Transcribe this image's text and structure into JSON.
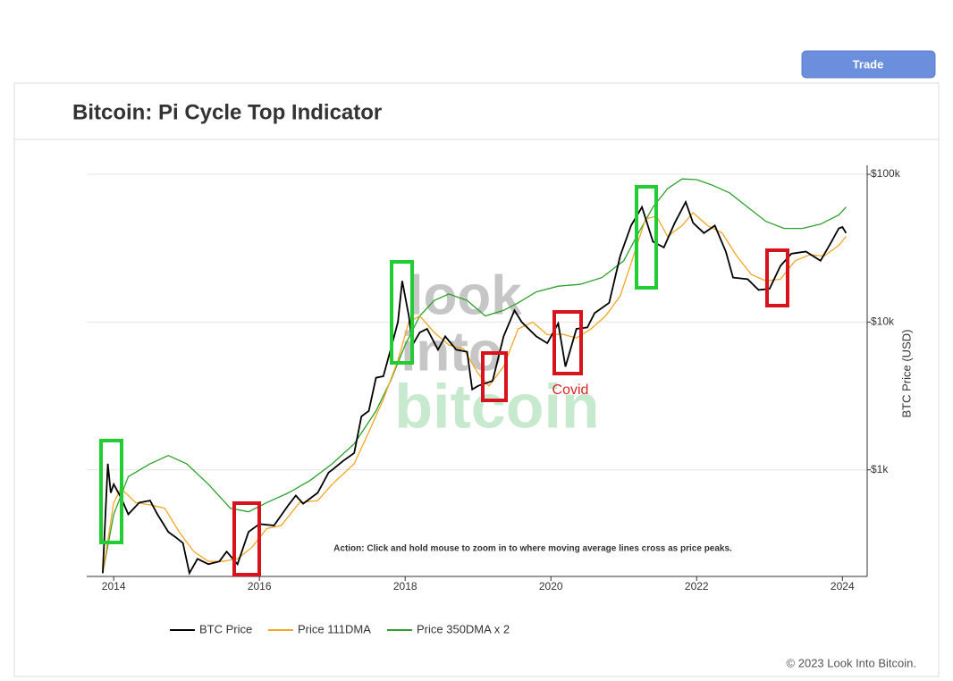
{
  "header": {
    "button": "Trade"
  },
  "chart_data": {
    "type": "line",
    "title": "Bitcoin: Pi Cycle Top Indicator",
    "y_label": "BTC Price (USD)",
    "log_scale": true,
    "grid": true,
    "xlim": [
      2013.63,
      2024.34
    ],
    "xticks": [
      2014,
      2016,
      2018,
      2020,
      2022,
      2024
    ],
    "ylim": [
      190,
      115000
    ],
    "yticks": [
      {
        "value": 1000,
        "label": "$1k"
      },
      {
        "value": 10000,
        "label": "$10k"
      },
      {
        "value": 100000,
        "label": "$100k"
      }
    ],
    "series": [
      {
        "name": "BTC Price",
        "color": "#000000",
        "x": [
          2013.85,
          2013.92,
          2013.96,
          2014.0,
          2014.1,
          2014.2,
          2014.35,
          2014.5,
          2014.6,
          2014.75,
          2014.85,
          2014.95,
          2015.04,
          2015.15,
          2015.3,
          2015.45,
          2015.55,
          2015.7,
          2015.85,
          2016.0,
          2016.2,
          2016.4,
          2016.5,
          2016.6,
          2016.8,
          2016.95,
          2017.0,
          2017.15,
          2017.3,
          2017.4,
          2017.5,
          2017.6,
          2017.7,
          2017.8,
          2017.9,
          2017.96,
          2018.05,
          2018.1,
          2018.2,
          2018.3,
          2018.45,
          2018.55,
          2018.7,
          2018.85,
          2018.92,
          2019.0,
          2019.2,
          2019.35,
          2019.5,
          2019.6,
          2019.8,
          2019.95,
          2020.1,
          2020.2,
          2020.35,
          2020.5,
          2020.6,
          2020.8,
          2020.95,
          2021.1,
          2021.25,
          2021.4,
          2021.55,
          2021.7,
          2021.85,
          2021.95,
          2022.1,
          2022.25,
          2022.4,
          2022.5,
          2022.7,
          2022.85,
          2023.0,
          2023.15,
          2023.3,
          2023.5,
          2023.7,
          2023.85,
          2023.95,
          2024.0,
          2024.05
        ],
        "values": [
          200,
          1100,
          700,
          800,
          650,
          500,
          600,
          620,
          500,
          380,
          350,
          320,
          200,
          250,
          230,
          240,
          280,
          230,
          380,
          430,
          420,
          580,
          670,
          590,
          700,
          960,
          1000,
          1150,
          1300,
          2300,
          2500,
          4200,
          4300,
          6500,
          10000,
          19000,
          11000,
          7000,
          8500,
          9000,
          6500,
          8000,
          6500,
          6300,
          3500,
          3700,
          4000,
          8000,
          12000,
          10000,
          8000,
          7200,
          9800,
          5000,
          9000,
          9200,
          11500,
          13500,
          28000,
          45000,
          60000,
          35000,
          32000,
          47000,
          65000,
          47000,
          40000,
          45000,
          30000,
          20000,
          19500,
          16500,
          16800,
          24000,
          29000,
          30000,
          26000,
          35000,
          43000,
          44000,
          40000
        ]
      },
      {
        "name": "Price 111DMA",
        "color": "#f5a623",
        "x": [
          2013.85,
          2014.0,
          2014.1,
          2014.3,
          2014.5,
          2014.7,
          2014.9,
          2015.1,
          2015.3,
          2015.5,
          2015.7,
          2015.9,
          2016.1,
          2016.3,
          2016.55,
          2016.8,
          2017.0,
          2017.3,
          2017.5,
          2017.7,
          2017.9,
          2018.05,
          2018.2,
          2018.4,
          2018.6,
          2018.8,
          2019.0,
          2019.15,
          2019.35,
          2019.55,
          2019.75,
          2019.95,
          2020.15,
          2020.35,
          2020.55,
          2020.75,
          2020.95,
          2021.1,
          2021.3,
          2021.45,
          2021.6,
          2021.8,
          2021.95,
          2022.15,
          2022.35,
          2022.55,
          2022.75,
          2022.95,
          2023.15,
          2023.35,
          2023.55,
          2023.75,
          2023.95,
          2024.05
        ],
        "values": [
          200,
          600,
          750,
          600,
          580,
          550,
          380,
          280,
          240,
          240,
          250,
          300,
          400,
          420,
          600,
          620,
          800,
          1100,
          1800,
          3000,
          5500,
          10000,
          11000,
          8500,
          7000,
          6600,
          4500,
          3700,
          5000,
          9000,
          10000,
          8200,
          8300,
          7800,
          9000,
          11000,
          15000,
          25000,
          50000,
          52000,
          38000,
          45000,
          55000,
          45000,
          40000,
          28000,
          21000,
          19000,
          19500,
          26000,
          28500,
          28000,
          33000,
          38000
        ]
      },
      {
        "name": "Price 350DMA x 2",
        "color": "#2ca02c",
        "x": [
          2013.85,
          2014.0,
          2014.2,
          2014.5,
          2014.75,
          2015.0,
          2015.3,
          2015.6,
          2015.85,
          2016.1,
          2016.4,
          2016.7,
          2017.0,
          2017.3,
          2017.6,
          2017.8,
          2018.0,
          2018.2,
          2018.4,
          2018.6,
          2018.85,
          2019.1,
          2019.35,
          2019.55,
          2019.8,
          2020.1,
          2020.4,
          2020.7,
          2021.0,
          2021.2,
          2021.4,
          2021.6,
          2021.8,
          2022.0,
          2022.2,
          2022.45,
          2022.7,
          2022.95,
          2023.2,
          2023.45,
          2023.7,
          2023.95,
          2024.05
        ],
        "values": [
          200,
          500,
          900,
          1100,
          1250,
          1100,
          800,
          550,
          520,
          600,
          700,
          850,
          1100,
          1500,
          2500,
          4000,
          7000,
          11000,
          14000,
          15500,
          14000,
          11000,
          12000,
          13500,
          16000,
          17500,
          18000,
          20000,
          26000,
          40000,
          60000,
          80000,
          93000,
          92000,
          85000,
          75000,
          60000,
          48000,
          43000,
          43000,
          46000,
          53000,
          60000
        ]
      }
    ],
    "annotations": {
      "covid": "Covid",
      "action": "Action: Click and hold mouse to zoom in to where moving average lines cross as price peaks.",
      "watermark": [
        "look",
        "into",
        "bitcoin"
      ]
    }
  },
  "footer": {
    "copyright": "© 2023 Look Into Bitcoin."
  }
}
